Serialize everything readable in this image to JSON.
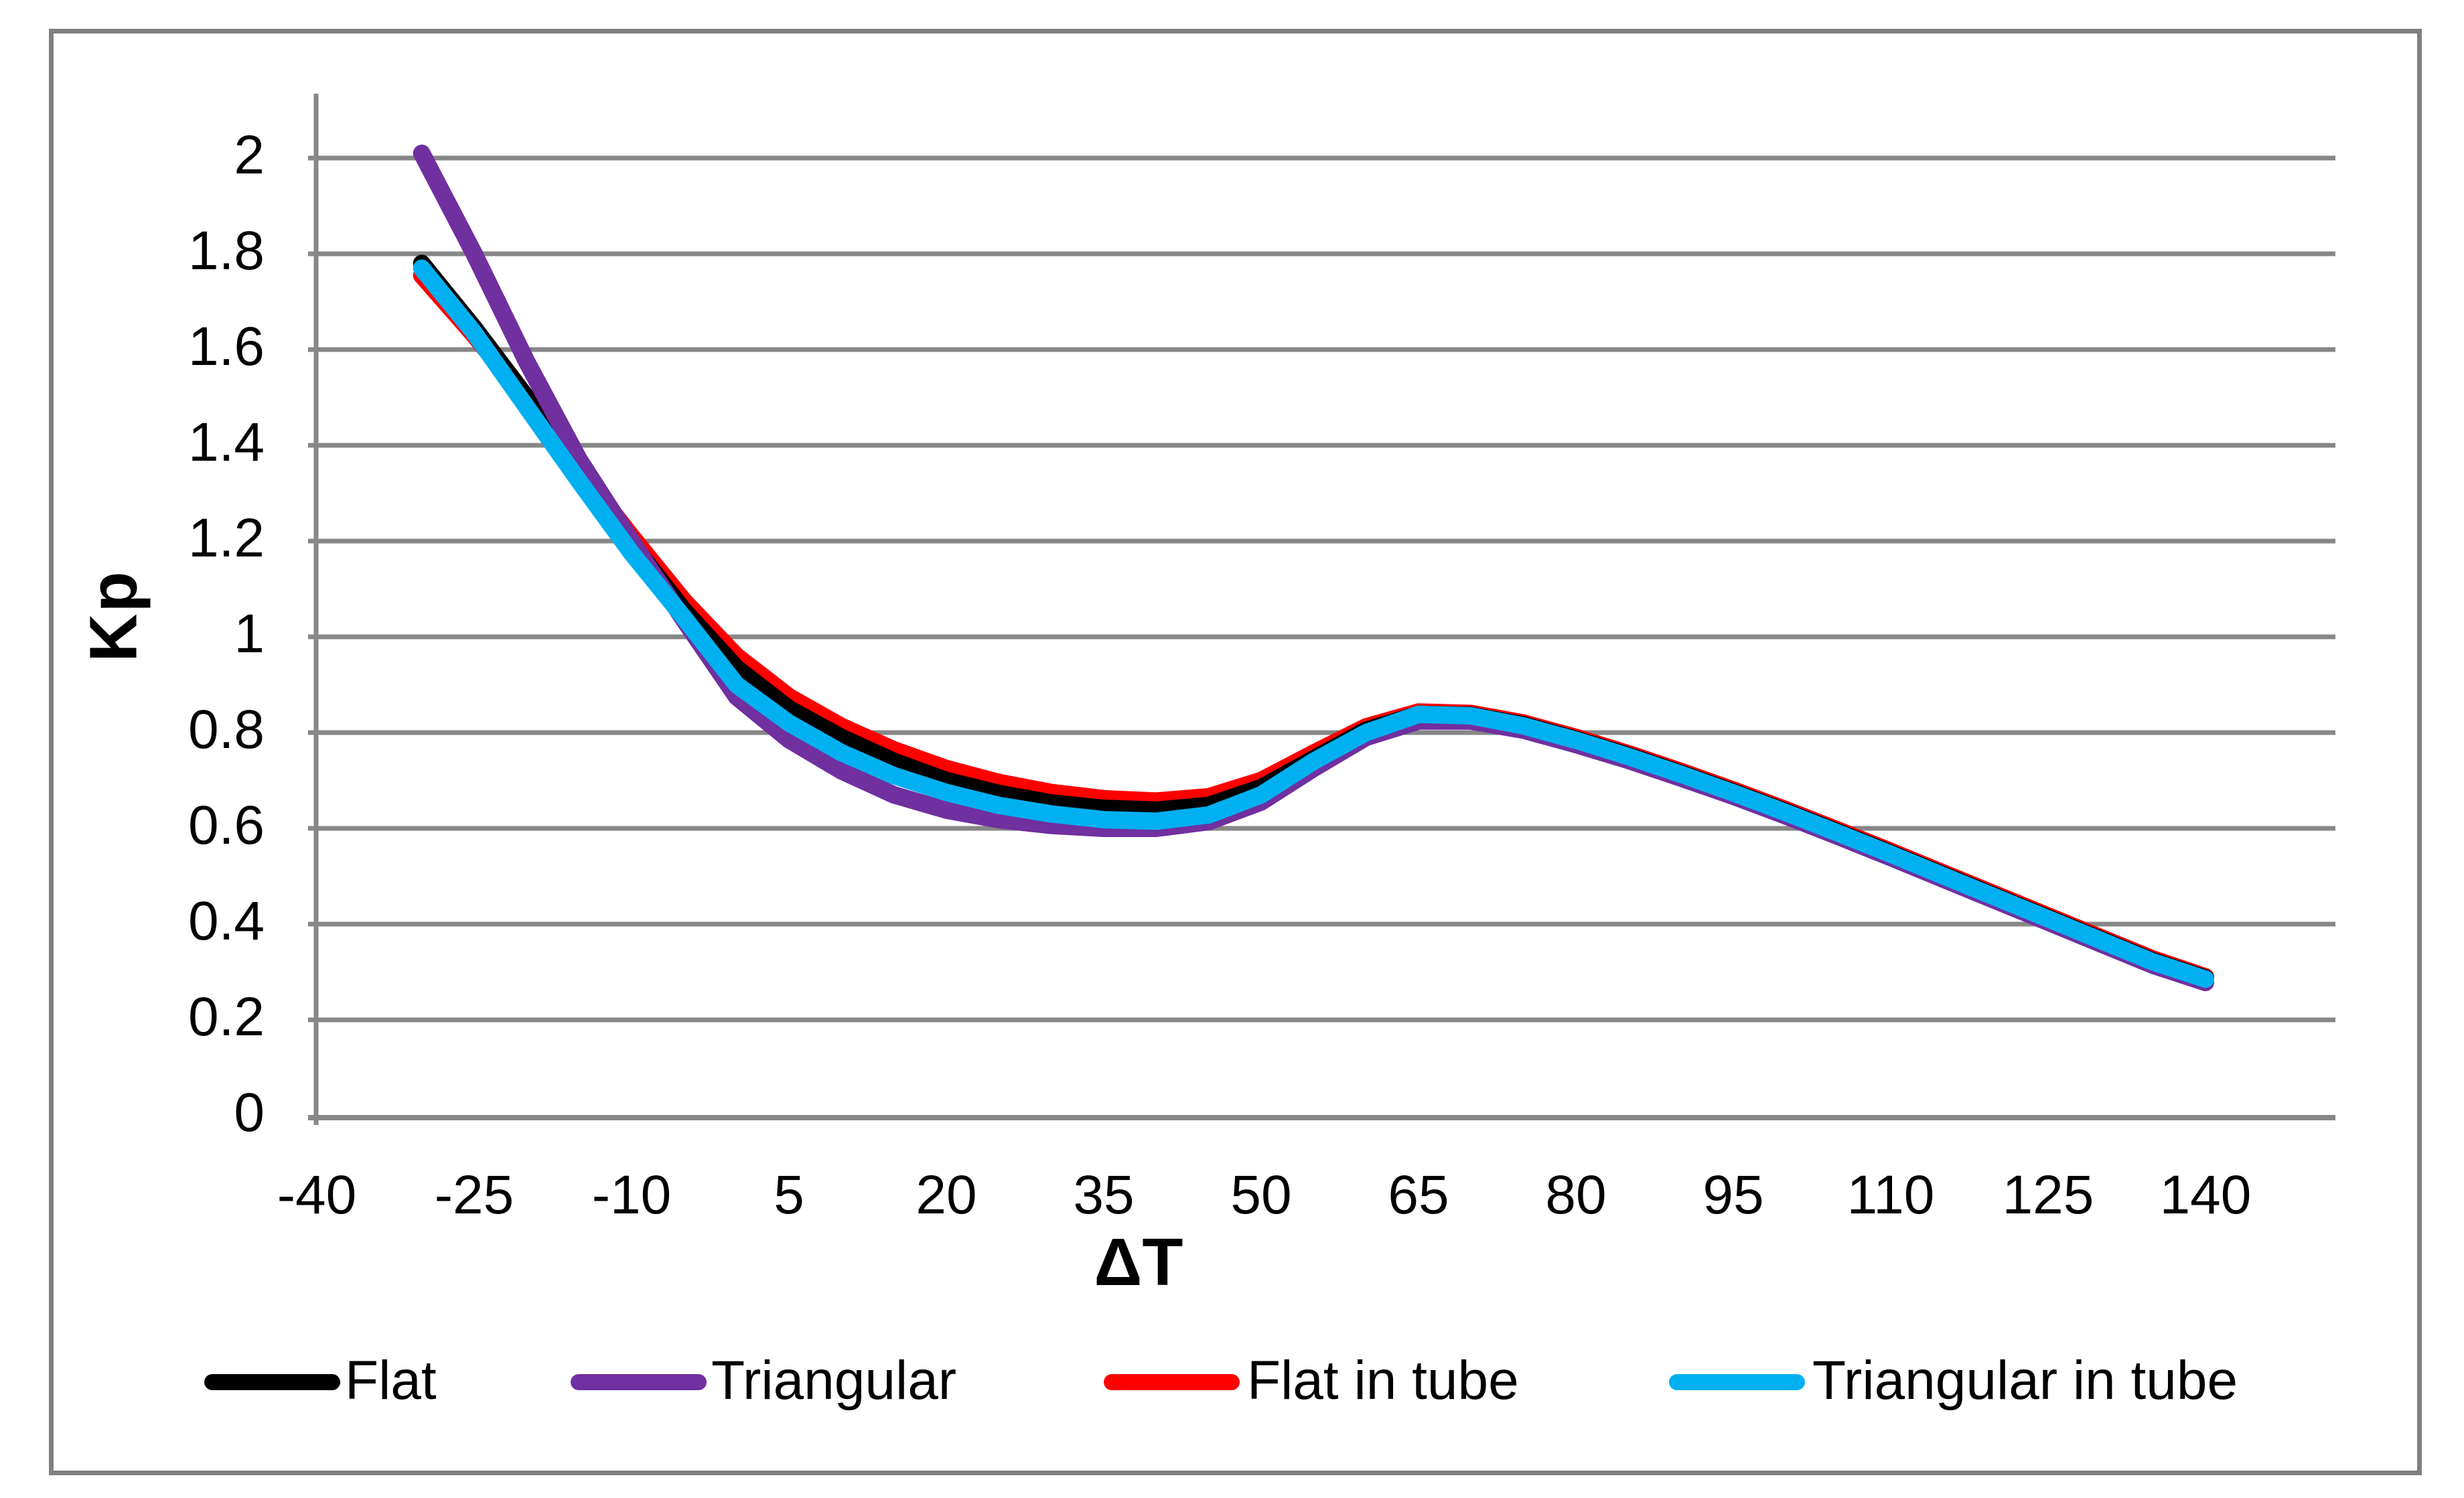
{
  "figure": {
    "background_color": "#FFFFFF",
    "border_color": "#808080",
    "gridline_color": "#878787",
    "axis_line_color": "#878787",
    "text_color": "#000000"
  },
  "chart_data": {
    "type": "line",
    "title": "",
    "xlabel": "ΔT",
    "ylabel": "Kp",
    "xlim": [
      -40,
      152
    ],
    "ylim": [
      0,
      2.13
    ],
    "grid": "horizontal",
    "legend_position": "bottom",
    "x_tick_labels": [
      "-40",
      "-25",
      "-10",
      "5",
      "20",
      "35",
      "50",
      "65",
      "80",
      "95",
      "110",
      "125",
      "140"
    ],
    "x_tick_values": [
      -40,
      -25,
      -10,
      5,
      20,
      35,
      50,
      65,
      80,
      95,
      110,
      125,
      140
    ],
    "y_tick_labels": [
      "0",
      "0.2",
      "0.4",
      "0.6",
      "0.8",
      "1",
      "1.2",
      "1.4",
      "1.6",
      "1.8",
      "2"
    ],
    "y_tick_values": [
      0,
      0.2,
      0.4,
      0.6,
      0.8,
      1,
      1.2,
      1.4,
      1.6,
      1.8,
      2
    ],
    "x": [
      -30,
      -25,
      -20,
      -15,
      -10,
      -5,
      0,
      5,
      10,
      15,
      20,
      25,
      30,
      35,
      40,
      45,
      50,
      55,
      60,
      65,
      70,
      75,
      80,
      85,
      90,
      95,
      100,
      105,
      110,
      115,
      120,
      125,
      130,
      135,
      140
    ],
    "series": [
      {
        "name": "Flat in tube",
        "color": "#FF0000",
        "values": [
          1.755,
          1.63,
          1.495,
          1.35,
          1.21,
          1.075,
          0.96,
          0.875,
          0.813,
          0.764,
          0.725,
          0.696,
          0.675,
          0.662,
          0.657,
          0.666,
          0.7,
          0.757,
          0.812,
          0.843,
          0.84,
          0.82,
          0.79,
          0.756,
          0.719,
          0.68,
          0.639,
          0.596,
          0.552,
          0.507,
          0.462,
          0.417,
          0.372,
          0.327,
          0.29
        ]
      },
      {
        "name": "Flat",
        "color": "#000000",
        "values": [
          1.78,
          1.645,
          1.5,
          1.345,
          1.195,
          1.055,
          0.935,
          0.85,
          0.79,
          0.74,
          0.7,
          0.673,
          0.653,
          0.642,
          0.638,
          0.648,
          0.685,
          0.745,
          0.805,
          0.838,
          0.836,
          0.816,
          0.786,
          0.752,
          0.715,
          0.676,
          0.635,
          0.592,
          0.548,
          0.503,
          0.458,
          0.413,
          0.368,
          0.323,
          0.287
        ]
      },
      {
        "name": "Triangular",
        "color": "#7030A0",
        "values": [
          2.01,
          1.8,
          1.575,
          1.37,
          1.2,
          1.035,
          0.875,
          0.785,
          0.72,
          0.67,
          0.638,
          0.618,
          0.606,
          0.6,
          0.6,
          0.614,
          0.655,
          0.725,
          0.79,
          0.824,
          0.824,
          0.805,
          0.775,
          0.742,
          0.705,
          0.667,
          0.626,
          0.583,
          0.539,
          0.494,
          0.449,
          0.404,
          0.359,
          0.314,
          0.278
        ]
      },
      {
        "name": "Triangular in tube",
        "color": "#00B0F0",
        "values": [
          1.77,
          1.635,
          1.48,
          1.325,
          1.175,
          1.04,
          0.9,
          0.82,
          0.758,
          0.71,
          0.675,
          0.648,
          0.63,
          0.618,
          0.615,
          0.628,
          0.67,
          0.74,
          0.8,
          0.838,
          0.835,
          0.814,
          0.784,
          0.75,
          0.713,
          0.674,
          0.633,
          0.59,
          0.546,
          0.501,
          0.456,
          0.411,
          0.366,
          0.321,
          0.285
        ]
      }
    ],
    "legend": [
      {
        "label": "Flat",
        "color": "#000000"
      },
      {
        "label": "Triangular",
        "color": "#7030A0"
      },
      {
        "label": "Flat in tube",
        "color": "#FF0000"
      },
      {
        "label": "Triangular in tube",
        "color": "#00B0F0"
      }
    ]
  }
}
